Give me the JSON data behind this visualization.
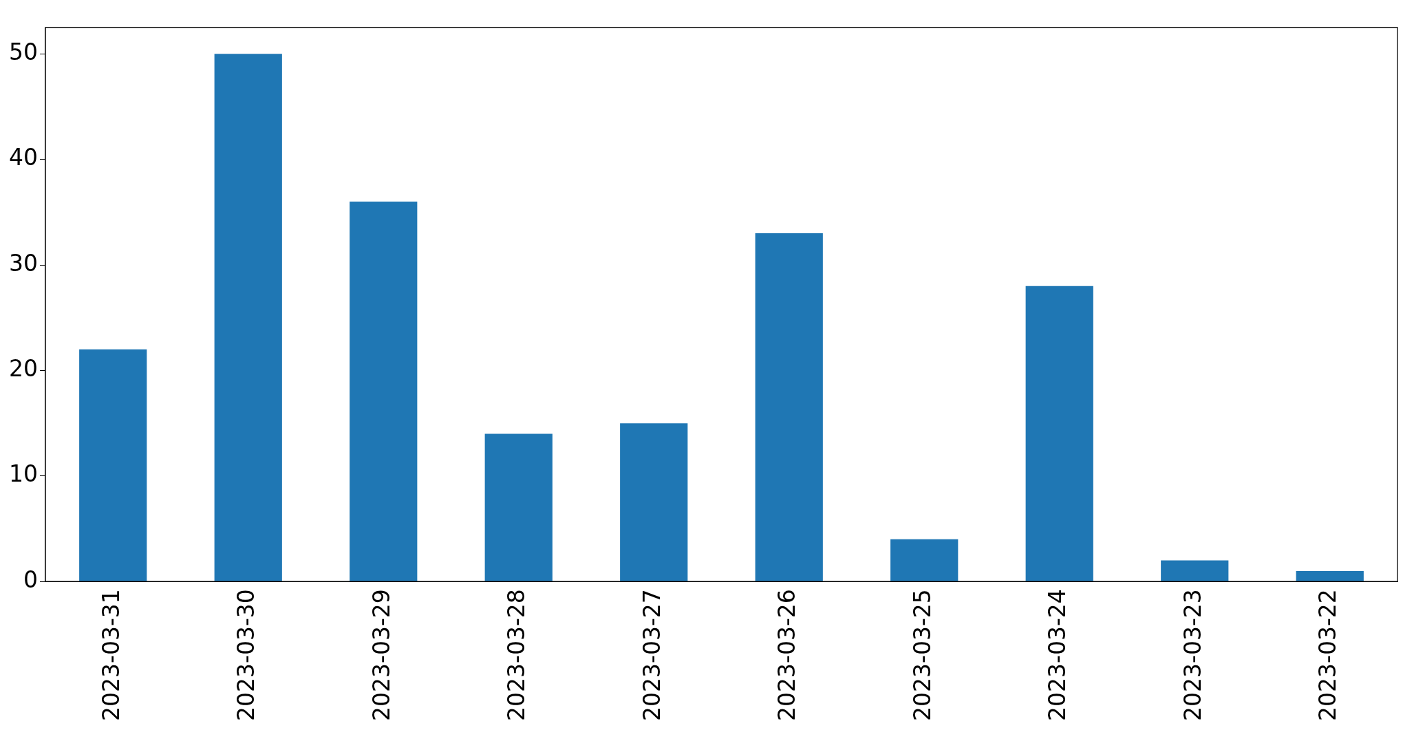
{
  "chart_data": {
    "type": "bar",
    "categories": [
      "2023-03-31",
      "2023-03-30",
      "2023-03-29",
      "2023-03-28",
      "2023-03-27",
      "2023-03-26",
      "2023-03-25",
      "2023-03-24",
      "2023-03-23",
      "2023-03-22"
    ],
    "values": [
      22,
      50,
      36,
      14,
      15,
      33,
      4,
      28,
      2,
      1
    ],
    "color": "#1f77b4",
    "ylim": [
      0,
      52.5
    ],
    "yticks": [
      0,
      10,
      20,
      30,
      40,
      50
    ],
    "grid": false,
    "legend": false
  }
}
